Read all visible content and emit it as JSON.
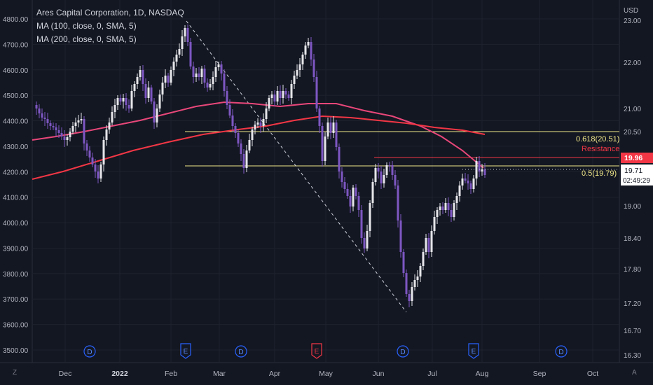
{
  "chart_data": {
    "type": "candlestick",
    "title": "Ares Capital Corporation, 1D, NASDAQ",
    "indicators": [
      "MA (100, close, 0, SMA, 5)",
      "MA (200, close, 0, SMA, 5)"
    ],
    "currency": "USD",
    "left_axis": {
      "ticks": [
        "4800.00",
        "4700.00",
        "4600.00",
        "4500.00",
        "4400.00",
        "4300.00",
        "4200.00",
        "4100.00",
        "4000.00",
        "3900.00",
        "3800.00",
        "3700.00",
        "3600.00",
        "3500.00"
      ]
    },
    "right_axis": {
      "ticks": [
        "23.00",
        "22.00",
        "21.00",
        "20.50",
        "19.00",
        "18.40",
        "17.80",
        "17.20",
        "16.70",
        "16.30"
      ]
    },
    "x_axis": {
      "ticks": [
        "Dec",
        "2022",
        "Feb",
        "Mar",
        "Apr",
        "May",
        "Jun",
        "Jul",
        "Aug",
        "Sep",
        "Oct"
      ]
    },
    "fib_levels": [
      {
        "label": "0.618(20.51)",
        "value": 20.51
      },
      {
        "label": "0.5(19.79)",
        "value": 19.79
      }
    ],
    "resistance": {
      "label": "Resistance",
      "value": 19.96
    },
    "price_badges": {
      "resistance": "19.96",
      "last": "19.71",
      "countdown": "02:49:29"
    },
    "events": [
      "D",
      "E",
      "D",
      "E",
      "D",
      "E",
      "D"
    ],
    "colors": {
      "up": "#e6e6ea",
      "down": "#7e57c2",
      "ma100": "#e9477a",
      "ma200": "#f23645",
      "fib": "#f2e88a",
      "background": "#131722"
    },
    "grid": true
  },
  "corner_left": "Z",
  "corner_right": "A"
}
